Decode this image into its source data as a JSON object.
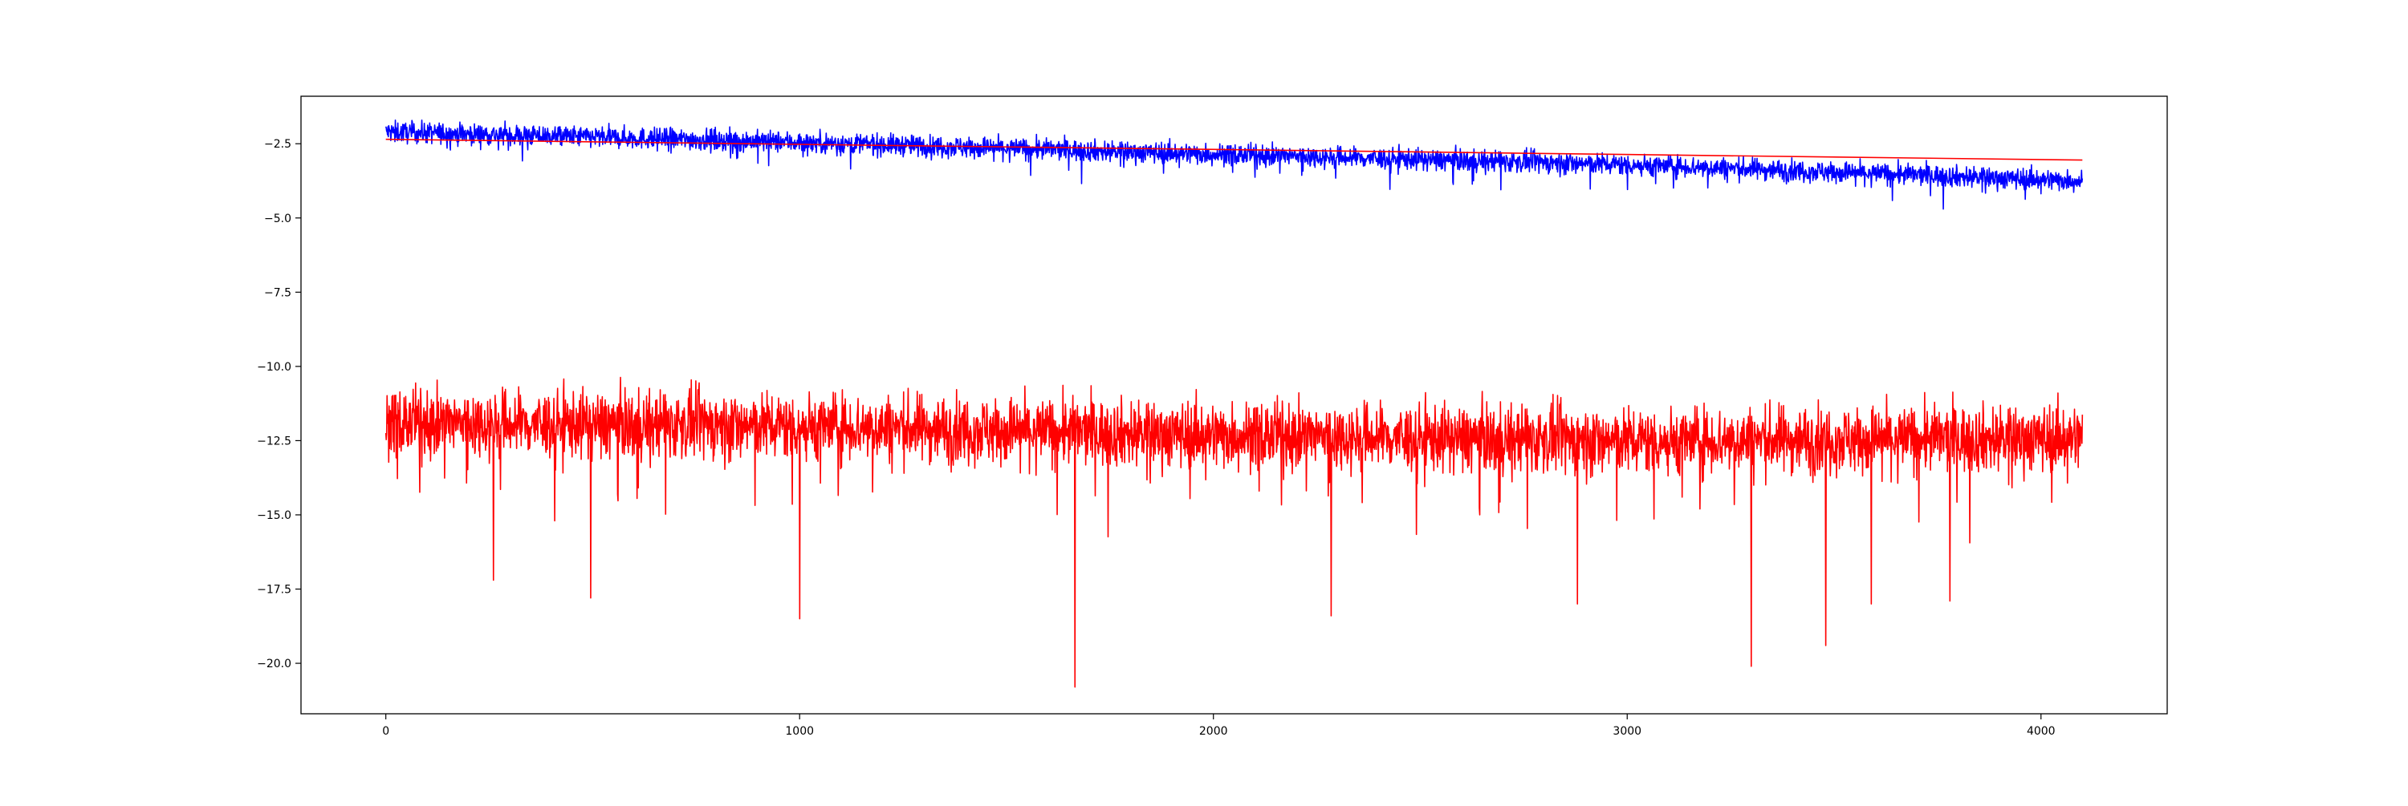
{
  "chart_data": {
    "type": "line",
    "title": "",
    "xlabel": "",
    "ylabel": "",
    "xlim": [
      -205,
      4305
    ],
    "ylim": [
      -21.7,
      -0.9
    ],
    "grid": false,
    "legend": "none",
    "x_ticks": [
      {
        "value": 0,
        "label": "0"
      },
      {
        "value": 1000,
        "label": "1000"
      },
      {
        "value": 2000,
        "label": "2000"
      },
      {
        "value": 3000,
        "label": "3000"
      },
      {
        "value": 4000,
        "label": "4000"
      }
    ],
    "y_ticks": [
      {
        "value": -2.5,
        "label": "−2.5"
      },
      {
        "value": -5.0,
        "label": "−5.0"
      },
      {
        "value": -7.5,
        "label": "−7.5"
      },
      {
        "value": -10.0,
        "label": "−10.0"
      },
      {
        "value": -12.5,
        "label": "−12.5"
      },
      {
        "value": -15.0,
        "label": "−15.0"
      },
      {
        "value": -17.5,
        "label": "−17.5"
      },
      {
        "value": -20.0,
        "label": "−20.0"
      }
    ],
    "series": [
      {
        "color": "#0000ff",
        "style": "noisy-line",
        "n_points": 4100,
        "x_range": [
          0,
          4100
        ],
        "trend": [
          [
            0,
            -2.1
          ],
          [
            1000,
            -2.45
          ],
          [
            2000,
            -2.85
          ],
          [
            3000,
            -3.2
          ],
          [
            4100,
            -3.75
          ]
        ],
        "noise_amplitude": 0.35,
        "min_value": -4.7,
        "max_value": -1.3
      },
      {
        "color": "#ff0000",
        "style": "straight-line",
        "x": [
          0,
          4100
        ],
        "values": [
          -2.35,
          -3.05
        ]
      },
      {
        "color": "#ff0000",
        "style": "noisy-line",
        "n_points": 4100,
        "x_range": [
          0,
          4100
        ],
        "trend": [
          [
            0,
            -11.9
          ],
          [
            1000,
            -12.0
          ],
          [
            2000,
            -12.3
          ],
          [
            3000,
            -12.5
          ],
          [
            4100,
            -12.4
          ]
        ],
        "noise_amplitude": 1.1,
        "min_value": -20.8,
        "max_value": -9.5,
        "spikes": [
          {
            "x": 260,
            "value": -17.2
          },
          {
            "x": 495,
            "value": -17.8
          },
          {
            "x": 1000,
            "value": -18.5
          },
          {
            "x": 1665,
            "value": -20.8
          },
          {
            "x": 2285,
            "value": -18.4
          },
          {
            "x": 2880,
            "value": -18.0
          },
          {
            "x": 3300,
            "value": -20.1
          },
          {
            "x": 3480,
            "value": -19.4
          },
          {
            "x": 3590,
            "value": -18.0
          },
          {
            "x": 3780,
            "value": -17.9
          }
        ]
      }
    ]
  }
}
